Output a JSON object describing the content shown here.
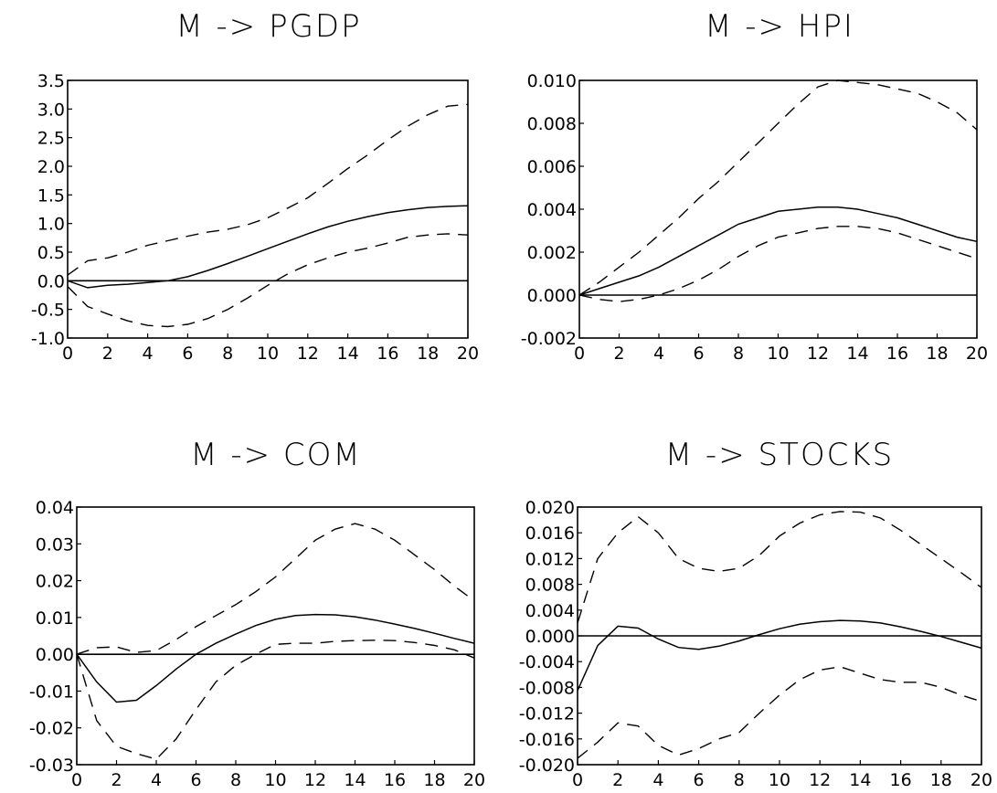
{
  "chart_data": [
    {
      "type": "line",
      "title": "M -> PGDP",
      "ylim": [
        -1.0,
        3.5
      ],
      "yticks": [
        -1.0,
        -0.5,
        0.0,
        0.5,
        1.0,
        1.5,
        2.0,
        2.5,
        3.0,
        3.5
      ],
      "ytick_labels": [
        "-1.0",
        "-0.5",
        "0.0",
        "0.5",
        "1.0",
        "1.5",
        "2.0",
        "2.5",
        "3.0",
        "3.5"
      ],
      "xlim": [
        0,
        20
      ],
      "xticks": [
        0,
        2,
        4,
        6,
        8,
        10,
        12,
        14,
        16,
        18,
        20
      ],
      "xtick_labels": [
        "0",
        "2",
        "4",
        "6",
        "8",
        "10",
        "12",
        "14",
        "16",
        "18",
        "20"
      ],
      "x": [
        0,
        1,
        2,
        3,
        4,
        5,
        6,
        7,
        8,
        9,
        10,
        11,
        12,
        13,
        14,
        15,
        16,
        17,
        18,
        19,
        20
      ],
      "series": [
        {
          "style": "solid",
          "values": [
            0.0,
            -0.12,
            -0.08,
            -0.06,
            -0.03,
            0.0,
            0.07,
            0.18,
            0.3,
            0.43,
            0.56,
            0.69,
            0.82,
            0.94,
            1.04,
            1.12,
            1.19,
            1.24,
            1.28,
            1.3,
            1.31
          ]
        },
        {
          "style": "dashed",
          "values": [
            0.1,
            0.35,
            0.4,
            0.5,
            0.62,
            0.7,
            0.78,
            0.85,
            0.9,
            0.98,
            1.1,
            1.27,
            1.45,
            1.7,
            1.96,
            2.2,
            2.46,
            2.7,
            2.9,
            3.05,
            3.08
          ]
        },
        {
          "style": "dashed",
          "values": [
            -0.1,
            -0.45,
            -0.58,
            -0.7,
            -0.78,
            -0.8,
            -0.76,
            -0.66,
            -0.5,
            -0.3,
            -0.08,
            0.12,
            0.28,
            0.4,
            0.5,
            0.57,
            0.66,
            0.76,
            0.8,
            0.82,
            0.8
          ]
        }
      ]
    },
    {
      "type": "line",
      "title": "M -> HPI",
      "ylim": [
        -0.002,
        0.01
      ],
      "yticks": [
        -0.002,
        0.0,
        0.002,
        0.004,
        0.006,
        0.008,
        0.01
      ],
      "ytick_labels": [
        "-0.002",
        "0.000",
        "0.002",
        "0.004",
        "0.006",
        "0.008",
        "0.010"
      ],
      "xlim": [
        0,
        20
      ],
      "xticks": [
        0,
        2,
        4,
        6,
        8,
        10,
        12,
        14,
        16,
        18,
        20
      ],
      "xtick_labels": [
        "0",
        "2",
        "4",
        "6",
        "8",
        "10",
        "12",
        "14",
        "16",
        "18",
        "20"
      ],
      "x": [
        0,
        1,
        2,
        3,
        4,
        5,
        6,
        7,
        8,
        9,
        10,
        11,
        12,
        13,
        14,
        15,
        16,
        17,
        18,
        19,
        20
      ],
      "series": [
        {
          "style": "solid",
          "values": [
            0.0,
            0.0003,
            0.0006,
            0.0009,
            0.0013,
            0.0018,
            0.0023,
            0.0028,
            0.0033,
            0.0036,
            0.0039,
            0.004,
            0.0041,
            0.0041,
            0.004,
            0.0038,
            0.0036,
            0.0033,
            0.003,
            0.0027,
            0.0025
          ]
        },
        {
          "style": "dashed",
          "values": [
            0.0,
            0.0006,
            0.0013,
            0.002,
            0.0028,
            0.0036,
            0.0045,
            0.0053,
            0.0062,
            0.0071,
            0.008,
            0.0089,
            0.0097,
            0.01,
            0.0099,
            0.0098,
            0.0096,
            0.0094,
            0.009,
            0.0085,
            0.0077
          ]
        },
        {
          "style": "dashed",
          "values": [
            0.0,
            -0.0002,
            -0.0003,
            -0.0002,
            0.0,
            0.0003,
            0.0007,
            0.0012,
            0.0018,
            0.0023,
            0.0027,
            0.0029,
            0.0031,
            0.0032,
            0.0032,
            0.0031,
            0.0029,
            0.0026,
            0.0023,
            0.002,
            0.0017
          ]
        }
      ]
    },
    {
      "type": "line",
      "title": "M -> COM",
      "ylim": [
        -0.03,
        0.04
      ],
      "yticks": [
        -0.03,
        -0.02,
        -0.01,
        0.0,
        0.01,
        0.02,
        0.03,
        0.04
      ],
      "ytick_labels": [
        "-0.03",
        "-0.02",
        "-0.01",
        "0.00",
        "0.01",
        "0.02",
        "0.03",
        "0.04"
      ],
      "xlim": [
        0,
        20
      ],
      "xticks": [
        0,
        2,
        4,
        6,
        8,
        10,
        12,
        14,
        16,
        18,
        20
      ],
      "xtick_labels": [
        "0",
        "2",
        "4",
        "6",
        "8",
        "10",
        "12",
        "14",
        "16",
        "18",
        "20"
      ],
      "x": [
        0,
        1,
        2,
        3,
        4,
        5,
        6,
        7,
        8,
        9,
        10,
        11,
        12,
        13,
        14,
        15,
        16,
        17,
        18,
        19,
        20
      ],
      "series": [
        {
          "style": "solid",
          "values": [
            0.0,
            -0.0075,
            -0.013,
            -0.0125,
            -0.0085,
            -0.004,
            0.0,
            0.003,
            0.0055,
            0.0078,
            0.0095,
            0.0105,
            0.0108,
            0.0107,
            0.0102,
            0.0093,
            0.0082,
            0.007,
            0.0057,
            0.0043,
            0.003
          ]
        },
        {
          "style": "dashed",
          "values": [
            0.0,
            0.0018,
            0.002,
            0.0005,
            0.001,
            0.004,
            0.0075,
            0.0105,
            0.0135,
            0.017,
            0.021,
            0.026,
            0.031,
            0.034,
            0.0355,
            0.034,
            0.031,
            0.027,
            0.023,
            0.0185,
            0.0145
          ]
        },
        {
          "style": "dashed",
          "values": [
            0.0,
            -0.018,
            -0.025,
            -0.027,
            -0.0285,
            -0.023,
            -0.015,
            -0.0075,
            -0.003,
            0.0,
            0.0027,
            0.003,
            0.003,
            0.0035,
            0.0037,
            0.0038,
            0.0037,
            0.0032,
            0.0024,
            0.0012,
            -0.001
          ]
        }
      ]
    },
    {
      "type": "line",
      "title": "M -> STOCKS",
      "ylim": [
        -0.02,
        0.02
      ],
      "yticks": [
        -0.02,
        -0.016,
        -0.012,
        -0.008,
        -0.004,
        0.0,
        0.004,
        0.008,
        0.012,
        0.016,
        0.02
      ],
      "ytick_labels": [
        "-0.020",
        "-0.016",
        "-0.012",
        "-0.008",
        "-0.004",
        "0.000",
        "0.004",
        "0.008",
        "0.012",
        "0.016",
        "0.020"
      ],
      "xlim": [
        0,
        20
      ],
      "xticks": [
        0,
        2,
        4,
        6,
        8,
        10,
        12,
        14,
        16,
        18,
        20
      ],
      "xtick_labels": [
        "0",
        "2",
        "4",
        "6",
        "8",
        "10",
        "12",
        "14",
        "16",
        "18",
        "20"
      ],
      "x": [
        0,
        1,
        2,
        3,
        4,
        5,
        6,
        7,
        8,
        9,
        10,
        11,
        12,
        13,
        14,
        15,
        16,
        17,
        18,
        19,
        20
      ],
      "series": [
        {
          "style": "solid",
          "values": [
            -0.0085,
            -0.0015,
            0.0015,
            0.0012,
            -0.0005,
            -0.0018,
            -0.0021,
            -0.0016,
            -0.0008,
            0.0002,
            0.0011,
            0.0018,
            0.0022,
            0.0024,
            0.0023,
            0.002,
            0.0014,
            0.0007,
            -0.0001,
            -0.001,
            -0.0019
          ]
        },
        {
          "style": "dashed",
          "values": [
            0.002,
            0.012,
            0.016,
            0.0185,
            0.016,
            0.012,
            0.0105,
            0.01,
            0.0105,
            0.0125,
            0.0155,
            0.0175,
            0.0188,
            0.0193,
            0.0192,
            0.0183,
            0.0164,
            0.0142,
            0.012,
            0.0098,
            0.0075
          ]
        },
        {
          "style": "dashed",
          "values": [
            -0.019,
            -0.0165,
            -0.0135,
            -0.014,
            -0.017,
            -0.0185,
            -0.0175,
            -0.016,
            -0.015,
            -0.012,
            -0.0092,
            -0.0068,
            -0.0053,
            -0.0048,
            -0.0058,
            -0.0068,
            -0.0072,
            -0.0072,
            -0.008,
            -0.0092,
            -0.0102
          ]
        }
      ]
    }
  ]
}
